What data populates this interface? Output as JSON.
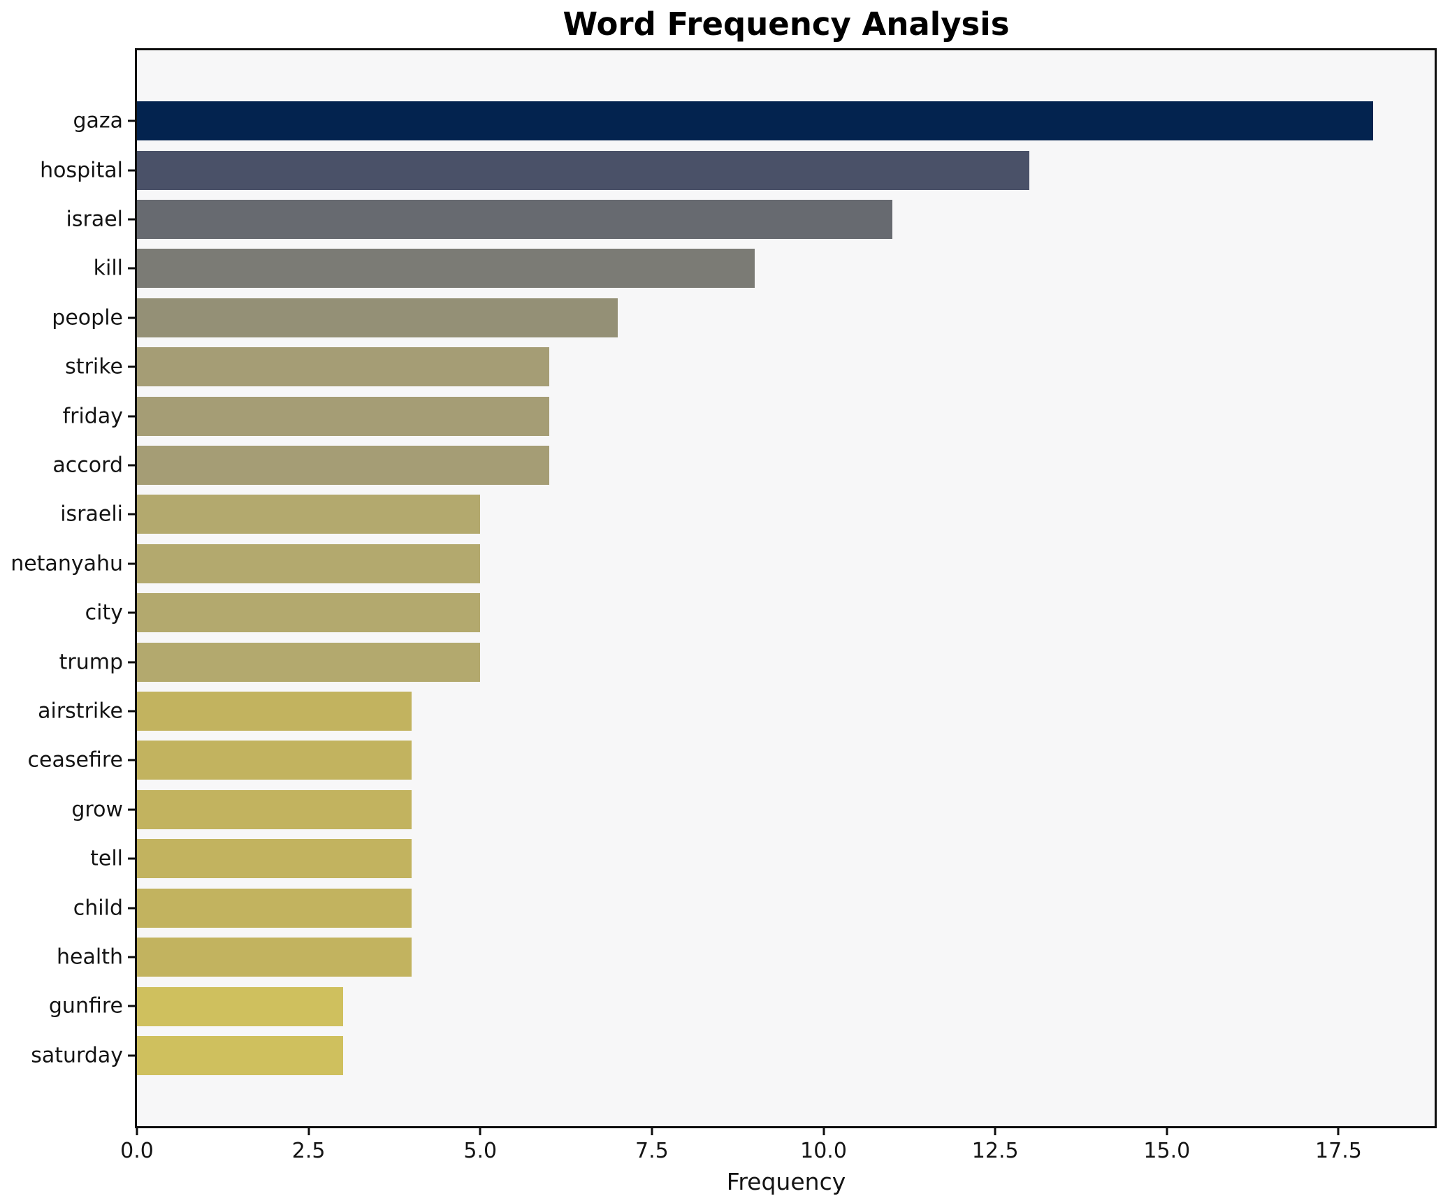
{
  "chart_data": {
    "type": "bar",
    "orientation": "horizontal",
    "title": "Word Frequency Analysis",
    "xlabel": "Frequency",
    "ylabel": "",
    "categories": [
      "gaza",
      "hospital",
      "israel",
      "kill",
      "people",
      "strike",
      "friday",
      "accord",
      "israeli",
      "netanyahu",
      "city",
      "trump",
      "airstrike",
      "ceasefire",
      "grow",
      "tell",
      "child",
      "health",
      "gunfire",
      "saturday"
    ],
    "values": [
      18,
      13,
      11,
      9,
      7,
      6,
      6,
      6,
      5,
      5,
      5,
      5,
      4,
      4,
      4,
      4,
      4,
      4,
      3,
      3
    ],
    "bar_colors": [
      "#03234f",
      "#4a5168",
      "#676a70",
      "#7b7b75",
      "#949076",
      "#a59d75",
      "#a59d75",
      "#a59d75",
      "#b3a96e",
      "#b3a96e",
      "#b3a96e",
      "#b3a96e",
      "#c2b35f",
      "#c2b35f",
      "#c2b35f",
      "#c2b35f",
      "#c2b35f",
      "#c2b35f",
      "#cfc05e",
      "#cfc05e"
    ],
    "x_ticks": [
      0,
      2.5,
      5,
      7.5,
      10,
      12.5,
      15,
      17.5
    ],
    "x_tick_labels": [
      "0.0",
      "2.5",
      "5.0",
      "7.5",
      "10.0",
      "12.5",
      "15.0",
      "17.5"
    ],
    "xlim": [
      0,
      18.9
    ],
    "grid": false,
    "legend": null,
    "colormap": "cividis-reversed-by-value",
    "plot_background": "#f7f7f8",
    "figure_background": "#ffffff",
    "spine_color": "#0e0e0e"
  }
}
